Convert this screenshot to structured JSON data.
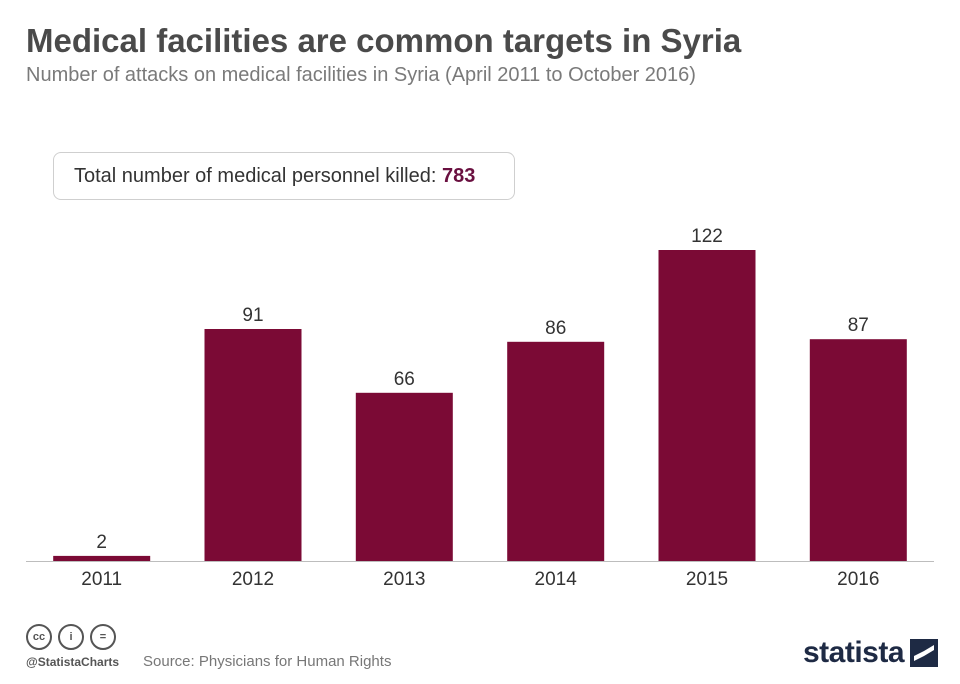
{
  "header": {
    "title": "Medical facilities are common targets in Syria",
    "subtitle": "Number of attacks on medical facilities in Syria (April 2011 to October 2016)"
  },
  "callout": {
    "label": "Total number of medical personnel killed:",
    "value": "783"
  },
  "chart_data": {
    "type": "bar",
    "categories": [
      "2011",
      "2012",
      "2013",
      "2014",
      "2015",
      "2016"
    ],
    "values": [
      2,
      91,
      66,
      86,
      122,
      87
    ],
    "title": "Medical facilities are common targets in Syria",
    "subtitle": "Number of attacks on medical facilities in Syria (April 2011 to October 2016)",
    "xlabel": "",
    "ylabel": "",
    "ylim": [
      0,
      122
    ],
    "grid": false,
    "data_labels": true,
    "color": "#7b0a35"
  },
  "footer": {
    "icons": [
      "cc-icon",
      "attribution-icon",
      "no-derivatives-icon"
    ],
    "cc_glyph": "cc",
    "by_glyph": "i",
    "nd_glyph": "=",
    "handle": "@StatistaCharts",
    "source": "Source: Physicians for Human Rights",
    "brand": "statista"
  },
  "colors": {
    "bar": "#7b0a35",
    "title": "#4a4a4a",
    "subtitle": "#7a7a7a",
    "highlight": "#6a1040",
    "brand": "#1e2a44"
  }
}
